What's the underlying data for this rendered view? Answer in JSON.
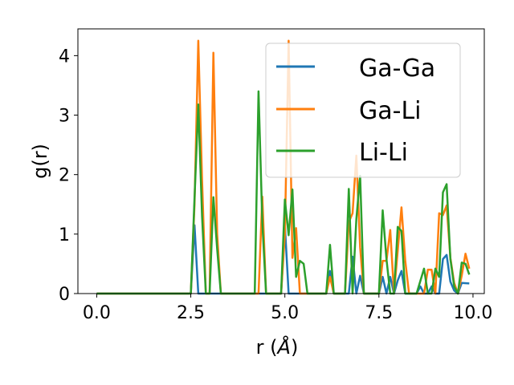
{
  "chart_data": {
    "type": "line",
    "title": "",
    "xlabel": "r (",
    "xlabel_unit": "Å",
    "xlabel_close": ")",
    "ylabel": "g(r)",
    "xlim": [
      -0.5,
      10.3
    ],
    "ylim": [
      0,
      4.45
    ],
    "xticks": [
      0.0,
      2.5,
      5.0,
      7.5,
      10.0
    ],
    "xtick_labels": [
      "0.0",
      "2.5",
      "5.0",
      "7.5",
      "10.0"
    ],
    "yticks": [
      0,
      1,
      2,
      3,
      4
    ],
    "ytick_labels": [
      "0",
      "1",
      "2",
      "3",
      "4"
    ],
    "grid": false,
    "legend_position": "upper-right",
    "series": [
      {
        "name": "Ga-Ga",
        "color": "#1f77b4",
        "points": [
          [
            0.0,
            0
          ],
          [
            2.5,
            0
          ],
          [
            2.6,
            1.15
          ],
          [
            2.7,
            0
          ],
          [
            4.9,
            0
          ],
          [
            5.0,
            1.15
          ],
          [
            5.1,
            0
          ],
          [
            6.1,
            0
          ],
          [
            6.2,
            0.38
          ],
          [
            6.3,
            0
          ],
          [
            6.7,
            0
          ],
          [
            6.8,
            0.62
          ],
          [
            6.9,
            0
          ],
          [
            7.0,
            0.3
          ],
          [
            7.1,
            0
          ],
          [
            7.5,
            0
          ],
          [
            7.6,
            0.28
          ],
          [
            7.7,
            0
          ],
          [
            7.8,
            0.28
          ],
          [
            7.9,
            0
          ],
          [
            8.0,
            0.22
          ],
          [
            8.1,
            0.38
          ],
          [
            8.2,
            0
          ],
          [
            8.5,
            0
          ],
          [
            8.6,
            0.12
          ],
          [
            8.7,
            0
          ],
          [
            8.8,
            0
          ],
          [
            8.9,
            0.12
          ],
          [
            9.0,
            0
          ],
          [
            9.1,
            0
          ],
          [
            9.2,
            0.58
          ],
          [
            9.3,
            0.65
          ],
          [
            9.4,
            0.2
          ],
          [
            9.5,
            0.05
          ],
          [
            9.6,
            0
          ],
          [
            9.7,
            0.18
          ],
          [
            9.9,
            0.17
          ]
        ]
      },
      {
        "name": "Ga-Li",
        "color": "#ff7f0e",
        "points": [
          [
            0.0,
            0
          ],
          [
            2.5,
            0
          ],
          [
            2.6,
            1.5
          ],
          [
            2.7,
            4.25
          ],
          [
            2.8,
            1.9
          ],
          [
            2.9,
            0
          ],
          [
            3.0,
            0
          ],
          [
            3.1,
            4.05
          ],
          [
            3.2,
            1.0
          ],
          [
            3.3,
            0
          ],
          [
            4.3,
            0
          ],
          [
            4.4,
            1.63
          ],
          [
            4.5,
            0
          ],
          [
            4.9,
            0
          ],
          [
            5.0,
            1.0
          ],
          [
            5.1,
            4.25
          ],
          [
            5.2,
            0.6
          ],
          [
            5.3,
            1.1
          ],
          [
            5.4,
            0
          ],
          [
            6.1,
            0
          ],
          [
            6.2,
            0.28
          ],
          [
            6.3,
            0
          ],
          [
            6.6,
            0
          ],
          [
            6.7,
            1.2
          ],
          [
            6.8,
            1.35
          ],
          [
            6.9,
            2.32
          ],
          [
            7.0,
            0.78
          ],
          [
            7.1,
            0
          ],
          [
            7.5,
            0
          ],
          [
            7.6,
            0.55
          ],
          [
            7.7,
            0.55
          ],
          [
            7.8,
            1.07
          ],
          [
            7.9,
            0
          ],
          [
            8.1,
            1.45
          ],
          [
            8.2,
            0.55
          ],
          [
            8.3,
            0
          ],
          [
            8.7,
            0
          ],
          [
            8.8,
            0.4
          ],
          [
            8.9,
            0.4
          ],
          [
            9.0,
            0
          ],
          [
            9.1,
            1.35
          ],
          [
            9.2,
            1.32
          ],
          [
            9.3,
            1.48
          ],
          [
            9.4,
            0.6
          ],
          [
            9.5,
            0.18
          ],
          [
            9.6,
            0
          ],
          [
            9.7,
            0.3
          ],
          [
            9.8,
            0.67
          ],
          [
            9.9,
            0.42
          ]
        ]
      },
      {
        "name": "Li-Li",
        "color": "#2ca02c",
        "points": [
          [
            0.0,
            0
          ],
          [
            2.5,
            0
          ],
          [
            2.6,
            1.6
          ],
          [
            2.7,
            3.18
          ],
          [
            2.8,
            1.3
          ],
          [
            2.9,
            0
          ],
          [
            3.0,
            0
          ],
          [
            3.1,
            1.62
          ],
          [
            3.2,
            0.75
          ],
          [
            3.3,
            0
          ],
          [
            4.2,
            0
          ],
          [
            4.3,
            3.4
          ],
          [
            4.4,
            1.2
          ],
          [
            4.5,
            0
          ],
          [
            4.9,
            0
          ],
          [
            5.0,
            1.58
          ],
          [
            5.1,
            0.98
          ],
          [
            5.2,
            1.75
          ],
          [
            5.3,
            0.28
          ],
          [
            5.4,
            0.55
          ],
          [
            5.5,
            0.5
          ],
          [
            5.6,
            0
          ],
          [
            6.1,
            0
          ],
          [
            6.2,
            0.82
          ],
          [
            6.3,
            0
          ],
          [
            6.6,
            0
          ],
          [
            6.7,
            1.76
          ],
          [
            6.8,
            0
          ],
          [
            6.9,
            1.25
          ],
          [
            7.0,
            1.98
          ],
          [
            7.1,
            0
          ],
          [
            7.5,
            0
          ],
          [
            7.6,
            1.4
          ],
          [
            7.7,
            0.58
          ],
          [
            7.8,
            0
          ],
          [
            7.9,
            0
          ],
          [
            8.0,
            1.12
          ],
          [
            8.1,
            1.05
          ],
          [
            8.2,
            0
          ],
          [
            8.5,
            0
          ],
          [
            8.7,
            0.42
          ],
          [
            8.8,
            0
          ],
          [
            8.9,
            0
          ],
          [
            9.0,
            0.42
          ],
          [
            9.1,
            0.28
          ],
          [
            9.2,
            1.7
          ],
          [
            9.3,
            1.84
          ],
          [
            9.4,
            0.58
          ],
          [
            9.5,
            0.12
          ],
          [
            9.6,
            0
          ],
          [
            9.7,
            0.52
          ],
          [
            9.8,
            0.5
          ],
          [
            9.9,
            0.32
          ]
        ]
      }
    ]
  }
}
